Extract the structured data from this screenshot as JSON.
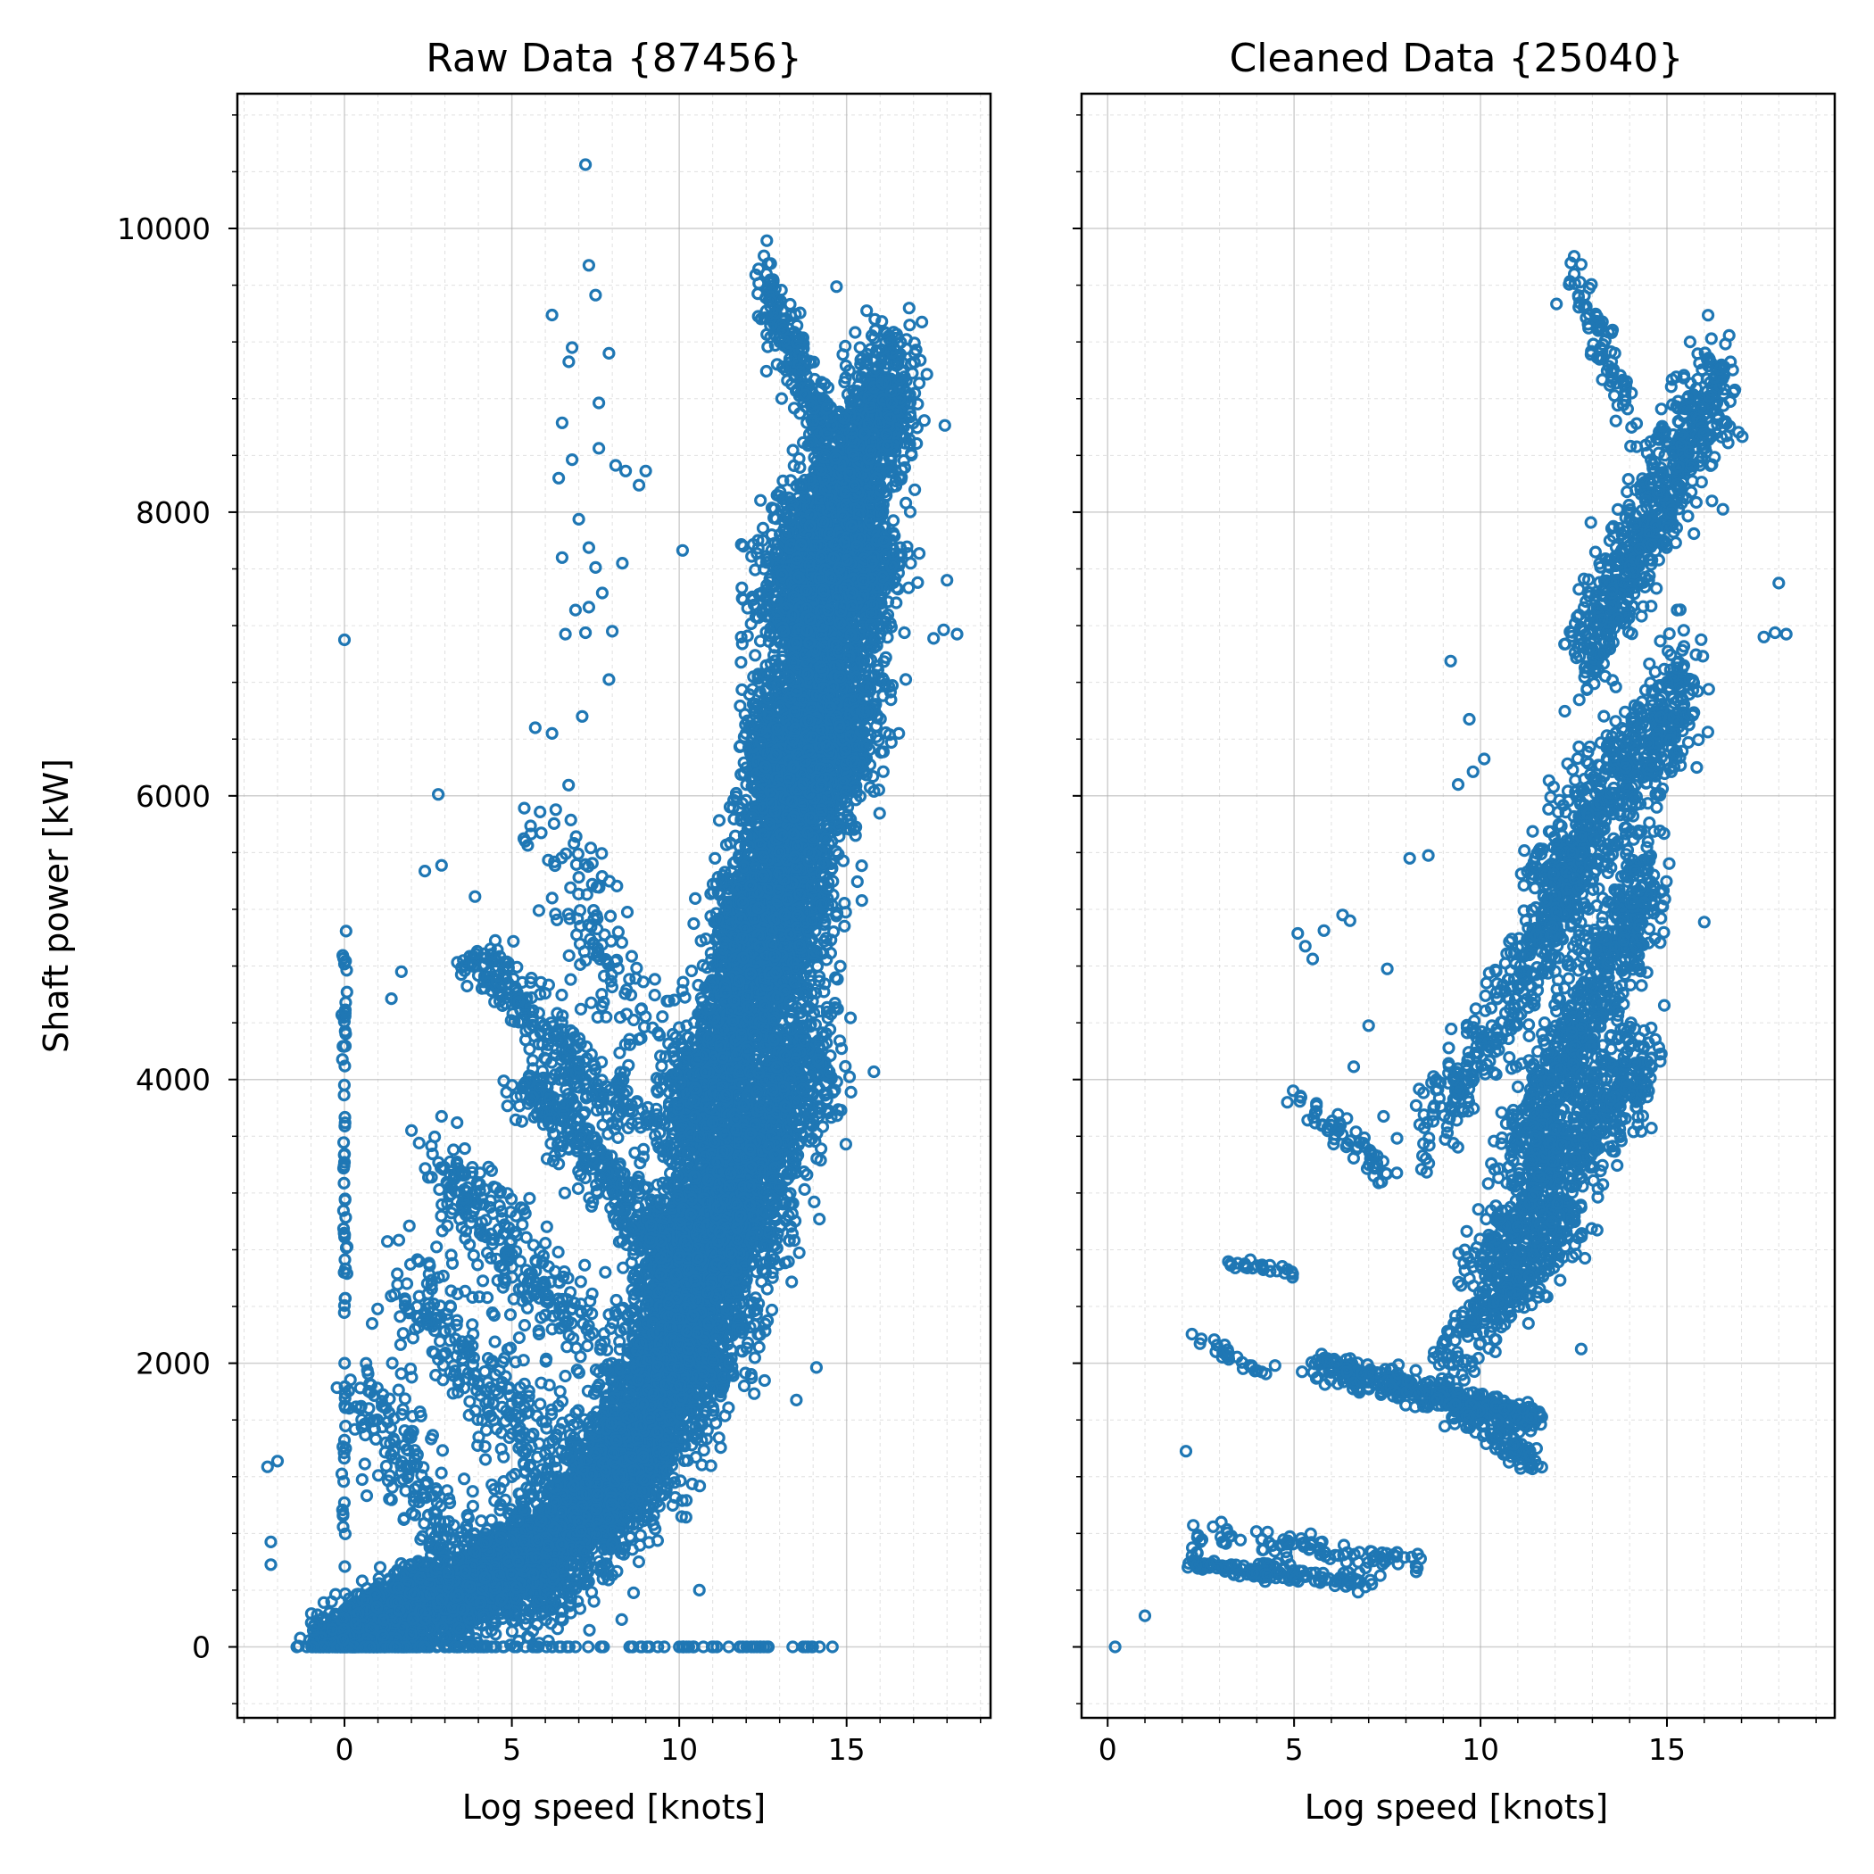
{
  "chart_data": [
    {
      "type": "scatter",
      "title": "Raw Data {87456}",
      "xlabel": "Log speed [knots]",
      "ylabel": "Shaft power [kW]",
      "xlim": [
        -3.2,
        19.3
      ],
      "ylim": [
        -500,
        10950
      ],
      "xticks": [
        0,
        5,
        10,
        15
      ],
      "yticks": [
        0,
        2000,
        4000,
        6000,
        8000,
        10000
      ],
      "grid": true,
      "marker": "hollow-circle",
      "color": "#1f77b4",
      "clusters": [
        {
          "x": [
            13.0,
            16.5
          ],
          "y": [
            7300,
            8900
          ],
          "n": 1600,
          "dx": 1.0,
          "dy": 500
        },
        {
          "x": [
            12.5,
            16.0
          ],
          "y": [
            6100,
            7800
          ],
          "n": 1500,
          "dx": 1.0,
          "dy": 500
        },
        {
          "x": [
            11.5,
            15.5
          ],
          "y": [
            4900,
            6700
          ],
          "n": 1500,
          "dx": 1.1,
          "dy": 500
        },
        {
          "x": [
            10.0,
            14.0
          ],
          "y": [
            3600,
            5400
          ],
          "n": 1600,
          "dx": 1.2,
          "dy": 500
        },
        {
          "x": [
            9.5,
            14.0
          ],
          "y": [
            2600,
            4200
          ],
          "n": 1500,
          "dx": 1.3,
          "dy": 500
        },
        {
          "x": [
            8.5,
            12.5
          ],
          "y": [
            1700,
            3200
          ],
          "n": 1400,
          "dx": 1.4,
          "dy": 500
        },
        {
          "x": [
            7.0,
            11.0
          ],
          "y": [
            900,
            2200
          ],
          "n": 1200,
          "dx": 1.5,
          "dy": 400
        },
        {
          "x": [
            5.0,
            9.0
          ],
          "y": [
            300,
            1400
          ],
          "n": 1000,
          "dx": 1.6,
          "dy": 350
        },
        {
          "x": [
            1.5,
            6.0
          ],
          "y": [
            50,
            800
          ],
          "n": 1000,
          "dx": 1.4,
          "dy": 300
        },
        {
          "x": [
            -0.5,
            3.0
          ],
          "y": [
            0,
            450
          ],
          "n": 1200,
          "dx": 0.9,
          "dy": 200
        },
        {
          "x": [
            12.5,
            14.5
          ],
          "y": [
            9600,
            8500
          ],
          "n": 200,
          "dx": 0.4,
          "dy": 250
        },
        {
          "x": [
            5.5,
            10.0
          ],
          "y": [
            4000,
            2700
          ],
          "n": 350,
          "dx": 1.0,
          "dy": 130
        },
        {
          "x": [
            4.0,
            8.5
          ],
          "y": [
            4900,
            3700
          ],
          "n": 250,
          "dx": 1.0,
          "dy": 130
        },
        {
          "x": [
            3.0,
            7.0
          ],
          "y": [
            3400,
            2200
          ],
          "n": 250,
          "dx": 1.2,
          "dy": 250
        },
        {
          "x": [
            2.0,
            6.0
          ],
          "y": [
            2600,
            1300
          ],
          "n": 250,
          "dx": 1.2,
          "dy": 350
        },
        {
          "x": [
            6.0,
            9.0
          ],
          "y": [
            5800,
            4200
          ],
          "n": 120,
          "dx": 1.0,
          "dy": 300
        },
        {
          "x": [
            0.5,
            4.0
          ],
          "y": [
            1800,
            500
          ],
          "n": 200,
          "dx": 1.0,
          "dy": 350
        },
        {
          "x": [
            0,
            0
          ],
          "y": [
            0,
            5100
          ],
          "n": 80,
          "dx": 0.07,
          "dy": 0
        },
        {
          "x": [
            0.5,
            14.5
          ],
          "y": [
            0,
            0
          ],
          "n": 100,
          "dx": 0.3,
          "dy": 0
        }
      ],
      "outliers": [
        [
          -2.3,
          1270
        ],
        [
          -2.0,
          1310
        ],
        [
          -2.2,
          740
        ],
        [
          -2.2,
          580
        ],
        [
          0.0,
          7100
        ],
        [
          7.2,
          10450
        ],
        [
          7.3,
          9740
        ],
        [
          7.5,
          9530
        ],
        [
          6.2,
          9390
        ],
        [
          6.8,
          9160
        ],
        [
          6.7,
          9060
        ],
        [
          7.9,
          9120
        ],
        [
          6.5,
          8630
        ],
        [
          6.8,
          8370
        ],
        [
          7.6,
          8770
        ],
        [
          7.6,
          8450
        ],
        [
          8.1,
          8330
        ],
        [
          8.4,
          8290
        ],
        [
          9.0,
          8290
        ],
        [
          8.8,
          8190
        ],
        [
          6.4,
          8240
        ],
        [
          7.0,
          7950
        ],
        [
          7.3,
          7750
        ],
        [
          7.5,
          7610
        ],
        [
          6.5,
          7680
        ],
        [
          8.3,
          7640
        ],
        [
          7.7,
          7430
        ],
        [
          7.3,
          7330
        ],
        [
          6.9,
          7310
        ],
        [
          6.6,
          7140
        ],
        [
          7.2,
          7150
        ],
        [
          8.0,
          7160
        ],
        [
          10.1,
          7730
        ],
        [
          7.9,
          6820
        ],
        [
          7.1,
          6560
        ],
        [
          5.7,
          6480
        ],
        [
          6.2,
          6440
        ],
        [
          2.8,
          6010
        ],
        [
          2.4,
          5470
        ],
        [
          2.9,
          5510
        ],
        [
          5.4,
          5680
        ],
        [
          3.9,
          5290
        ],
        [
          1.4,
          4570
        ],
        [
          1.7,
          4760
        ],
        [
          2.0,
          3640
        ],
        [
          2.9,
          3740
        ],
        [
          14.1,
          1970
        ],
        [
          13.5,
          1740
        ],
        [
          7.2,
          1150
        ],
        [
          10.6,
          400
        ],
        [
          17.9,
          7170
        ],
        [
          18.3,
          7140
        ],
        [
          17.6,
          7110
        ],
        [
          18.0,
          7520
        ],
        [
          16.1,
          6310
        ],
        [
          15.6,
          9420
        ],
        [
          15.4,
          9160
        ],
        [
          14.7,
          9590
        ],
        [
          13.1,
          8220
        ]
      ]
    },
    {
      "type": "scatter",
      "title": "Cleaned Data {25040}",
      "xlabel": "Log speed [knots]",
      "ylabel": "",
      "xlim": [
        -0.7,
        19.5
      ],
      "ylim": [
        -500,
        10950
      ],
      "xticks": [
        0,
        5,
        10,
        15
      ],
      "yticks": [
        0,
        2000,
        4000,
        6000,
        8000,
        10000
      ],
      "grid": true,
      "marker": "hollow-circle",
      "color": "#1f77b4",
      "clusters": [
        {
          "x": [
            12.8,
            16.5
          ],
          "y": [
            7000,
            9000
          ],
          "n": 650,
          "dx": 0.6,
          "dy": 400
        },
        {
          "x": [
            12.5,
            14.0
          ],
          "y": [
            9700,
            8700
          ],
          "n": 80,
          "dx": 0.3,
          "dy": 200
        },
        {
          "x": [
            11.5,
            15.5
          ],
          "y": [
            5200,
            6800
          ],
          "n": 650,
          "dx": 0.7,
          "dy": 450
        },
        {
          "x": [
            11.0,
            14.5
          ],
          "y": [
            3400,
            5400
          ],
          "n": 700,
          "dx": 0.7,
          "dy": 450
        },
        {
          "x": [
            10.0,
            14.5
          ],
          "y": [
            2600,
            4200
          ],
          "n": 600,
          "dx": 0.8,
          "dy": 350
        },
        {
          "x": [
            8.5,
            12.5
          ],
          "y": [
            3600,
            5300
          ],
          "n": 300,
          "dx": 0.6,
          "dy": 300
        },
        {
          "x": [
            9.0,
            12.5
          ],
          "y": [
            2000,
            3000
          ],
          "n": 250,
          "dx": 0.6,
          "dy": 250
        },
        {
          "x": [
            5.5,
            11.5
          ],
          "y": [
            2000,
            1600
          ],
          "n": 350,
          "dx": 0.4,
          "dy": 110
        },
        {
          "x": [
            9.0,
            11.5
          ],
          "y": [
            1750,
            1300
          ],
          "n": 120,
          "dx": 0.4,
          "dy": 120
        },
        {
          "x": [
            5.0,
            7.5
          ],
          "y": [
            3850,
            3350
          ],
          "n": 60,
          "dx": 0.3,
          "dy": 100
        },
        {
          "x": [
            3.2,
            5.0
          ],
          "y": [
            2700,
            2650
          ],
          "n": 25,
          "dx": 0.2,
          "dy": 40
        },
        {
          "x": [
            2.3,
            4.5
          ],
          "y": [
            2180,
            1900
          ],
          "n": 25,
          "dx": 0.2,
          "dy": 70
        },
        {
          "x": [
            2.2,
            7.0
          ],
          "y": [
            600,
            450
          ],
          "n": 130,
          "dx": 0.2,
          "dy": 60
        },
        {
          "x": [
            2.2,
            8.5
          ],
          "y": [
            800,
            600
          ],
          "n": 90,
          "dx": 0.3,
          "dy": 80
        }
      ],
      "outliers": [
        [
          0.2,
          0
        ],
        [
          1.0,
          220
        ],
        [
          2.1,
          1380
        ],
        [
          5.1,
          5030
        ],
        [
          5.8,
          5050
        ],
        [
          6.3,
          5160
        ],
        [
          6.5,
          5120
        ],
        [
          5.3,
          4940
        ],
        [
          5.5,
          4850
        ],
        [
          7.5,
          4780
        ],
        [
          7.0,
          4380
        ],
        [
          8.1,
          5560
        ],
        [
          8.6,
          5580
        ],
        [
          9.2,
          6950
        ],
        [
          9.4,
          6080
        ],
        [
          9.7,
          6540
        ],
        [
          9.8,
          6170
        ],
        [
          10.1,
          6260
        ],
        [
          17.6,
          7120
        ],
        [
          17.9,
          7150
        ],
        [
          18.2,
          7140
        ],
        [
          18.0,
          7500
        ],
        [
          16.5,
          8020
        ],
        [
          16.1,
          6450
        ],
        [
          15.8,
          6200
        ],
        [
          16.0,
          5110
        ],
        [
          12.7,
          2100
        ],
        [
          12.8,
          2740
        ],
        [
          6.6,
          4090
        ],
        [
          7.4,
          3740
        ]
      ]
    }
  ]
}
